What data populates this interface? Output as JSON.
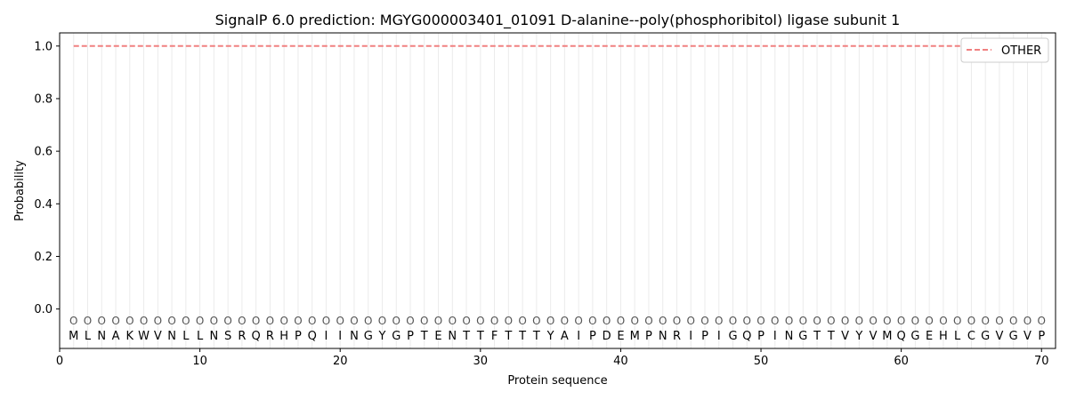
{
  "chart_data": {
    "type": "line",
    "title": "SignalP 6.0 prediction: MGYG000003401_01091 D-alanine--poly(phosphoribitol) ligase subunit 1",
    "xlabel": "Protein sequence",
    "ylabel": "Probability",
    "xlim": [
      0,
      71
    ],
    "ylim": [
      -0.15,
      1.05
    ],
    "x_ticks": [
      0,
      10,
      20,
      30,
      40,
      50,
      60,
      70
    ],
    "y_ticks": [
      0.0,
      0.2,
      0.4,
      0.6,
      0.8,
      1.0
    ],
    "legend_position": "top-right",
    "grid": "vertical lines at each residue",
    "sequence": [
      "M",
      "L",
      "N",
      "A",
      "K",
      "W",
      "V",
      "N",
      "L",
      "L",
      "N",
      "S",
      "R",
      "Q",
      "R",
      "H",
      "P",
      "Q",
      "I",
      "I",
      "N",
      "G",
      "Y",
      "G",
      "P",
      "T",
      "E",
      "N",
      "T",
      "T",
      "F",
      "T",
      "T",
      "T",
      "Y",
      "A",
      "I",
      "P",
      "D",
      "E",
      "M",
      "P",
      "N",
      "R",
      "I",
      "P",
      "I",
      "G",
      "Q",
      "P",
      "I",
      "N",
      "G",
      "T",
      "T",
      "V",
      "Y",
      "V",
      "M",
      "Q",
      "G",
      "E",
      "H",
      "L",
      "C",
      "G",
      "V",
      "G",
      "V",
      "P"
    ],
    "state_labels": [
      "O",
      "O",
      "O",
      "O",
      "O",
      "O",
      "O",
      "O",
      "O",
      "O",
      "O",
      "O",
      "O",
      "O",
      "O",
      "O",
      "O",
      "O",
      "O",
      "O",
      "O",
      "O",
      "O",
      "O",
      "O",
      "O",
      "O",
      "O",
      "O",
      "O",
      "O",
      "O",
      "O",
      "O",
      "O",
      "O",
      "O",
      "O",
      "O",
      "O",
      "O",
      "O",
      "O",
      "O",
      "O",
      "O",
      "O",
      "O",
      "O",
      "O",
      "O",
      "O",
      "O",
      "O",
      "O",
      "O",
      "O",
      "O",
      "O",
      "O",
      "O",
      "O",
      "O",
      "O",
      "O",
      "O",
      "O",
      "O",
      "O",
      "O"
    ],
    "series": [
      {
        "name": "OTHER",
        "color": "#f08080",
        "style": "dashed",
        "x_start": 1,
        "x_end": 70,
        "value": 1.0
      }
    ]
  }
}
